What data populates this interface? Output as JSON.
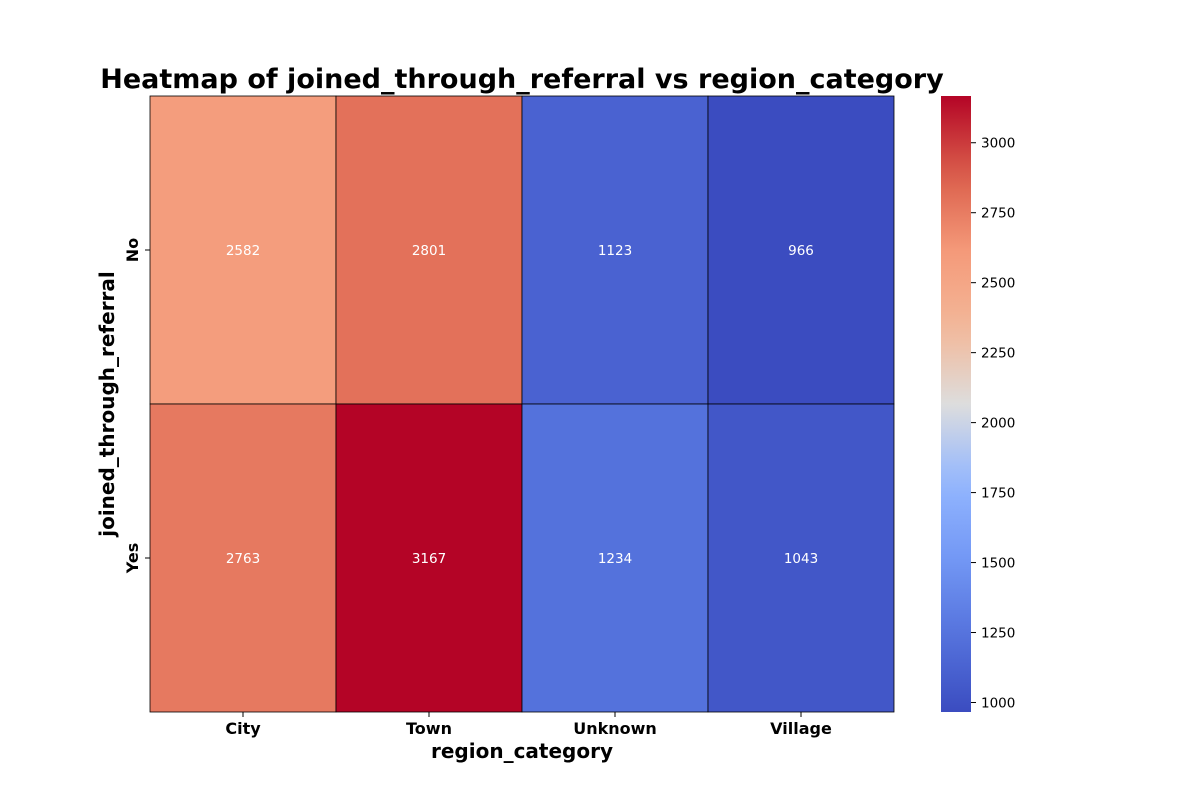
{
  "chart_data": {
    "type": "heatmap",
    "title": "Heatmap of joined_through_referral vs region_category",
    "xlabel": "region_category",
    "ylabel": "joined_through_referral",
    "x_categories": [
      "City",
      "Town",
      "Unknown",
      "Village"
    ],
    "y_categories": [
      "No",
      "Yes"
    ],
    "values": [
      [
        2582,
        2801,
        1123,
        966
      ],
      [
        2763,
        3167,
        1234,
        1043
      ]
    ],
    "colormap": "coolwarm",
    "color_range": [
      966,
      3167
    ],
    "colorbar_ticks": [
      1000,
      1250,
      1500,
      1750,
      2000,
      2250,
      2500,
      2750,
      3000
    ],
    "annotations": true,
    "cell_border_color": "#000000"
  }
}
